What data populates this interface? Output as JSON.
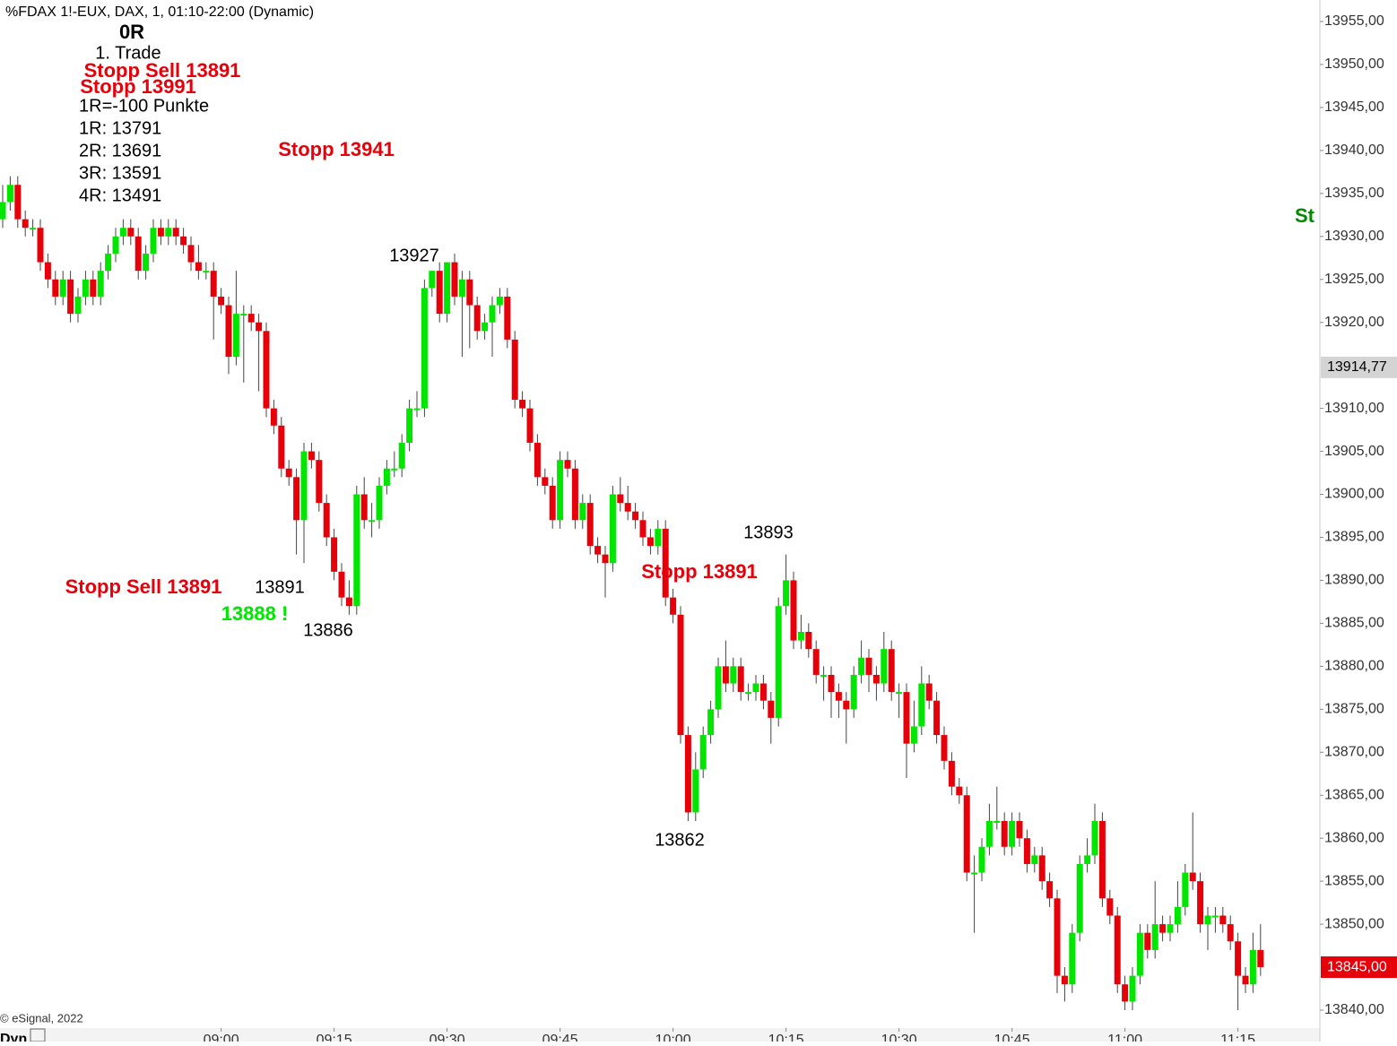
{
  "chart_data": {
    "type": "candlestick",
    "title": "%FDAX 1!-EUX, DAX, 1, 01:10-22:00 (Dynamic)",
    "up_color": "#00e600",
    "down_color": "#e6000a",
    "wick_color": "#444444",
    "ylim": [
      13840,
      13955
    ],
    "yticks": [
      {
        "value": 13955,
        "label": "13955,00"
      },
      {
        "value": 13950,
        "label": "13950,00"
      },
      {
        "value": 13945,
        "label": "13945,00"
      },
      {
        "value": 13940,
        "label": "13940,00"
      },
      {
        "value": 13935,
        "label": "13935,00"
      },
      {
        "value": 13930,
        "label": "13930,00"
      },
      {
        "value": 13925,
        "label": "13925,00"
      },
      {
        "value": 13920,
        "label": "13920,00"
      },
      {
        "value": 13910,
        "label": "13910,00"
      },
      {
        "value": 13905,
        "label": "13905,00"
      },
      {
        "value": 13900,
        "label": "13900,00"
      },
      {
        "value": 13895,
        "label": "13895,00"
      },
      {
        "value": 13890,
        "label": "13890,00"
      },
      {
        "value": 13885,
        "label": "13885,00"
      },
      {
        "value": 13880,
        "label": "13880,00"
      },
      {
        "value": 13875,
        "label": "13875,00"
      },
      {
        "value": 13870,
        "label": "13870,00"
      },
      {
        "value": 13865,
        "label": "13865,00"
      },
      {
        "value": 13860,
        "label": "13860,00"
      },
      {
        "value": 13855,
        "label": "13855,00"
      },
      {
        "value": 13850,
        "label": "13850,00"
      },
      {
        "value": 13840,
        "label": "13840,00"
      }
    ],
    "crosshair": {
      "value": 13914.77,
      "label": "13914,77",
      "color": "#d4d4d4"
    },
    "last_price": {
      "value": 13845,
      "label": "13845,00",
      "color": "#e6000a"
    },
    "categories": [
      null,
      null,
      null,
      null,
      null,
      null,
      null,
      null,
      null,
      null,
      null,
      null,
      null,
      null,
      null,
      null,
      null,
      null,
      null,
      null,
      null,
      null,
      null,
      null,
      null,
      null,
      null,
      null,
      null,
      "09:00",
      null,
      null,
      null,
      null,
      null,
      null,
      null,
      null,
      null,
      null,
      null,
      null,
      null,
      null,
      "09:15",
      null,
      null,
      null,
      null,
      null,
      null,
      null,
      null,
      null,
      null,
      null,
      null,
      null,
      null,
      "09:30",
      null,
      null,
      null,
      null,
      null,
      null,
      null,
      null,
      null,
      null,
      null,
      null,
      null,
      null,
      "09:45",
      null,
      null,
      null,
      null,
      null,
      null,
      null,
      null,
      null,
      null,
      null,
      null,
      null,
      null,
      "10:00",
      null,
      null,
      null,
      null,
      null,
      null,
      null,
      null,
      null,
      null,
      null,
      null,
      null,
      null,
      "10:15",
      null,
      null,
      null,
      null,
      null,
      null,
      null,
      null,
      null,
      null,
      null,
      null,
      null,
      null,
      "10:30",
      null,
      null,
      null,
      null,
      null,
      null,
      null,
      null,
      null,
      null,
      null,
      null,
      null,
      null,
      "10:45",
      null,
      null,
      null,
      null,
      null,
      null,
      null,
      null,
      null,
      null,
      null,
      null,
      null,
      null,
      "11:00",
      null,
      null,
      null,
      null,
      null,
      null,
      null,
      null,
      null,
      null,
      null,
      null,
      null,
      null,
      "11:15",
      null,
      null,
      null
    ],
    "candles": [
      [
        13932,
        13936,
        13931,
        13934
      ],
      [
        13934,
        13937,
        13933,
        13936
      ],
      [
        13936,
        13937,
        13931,
        13932
      ],
      [
        13932,
        13933,
        13930,
        13931
      ],
      [
        13931,
        13932,
        13930,
        13931
      ],
      [
        13931,
        13932,
        13926,
        13927
      ],
      [
        13927,
        13928,
        13924,
        13925
      ],
      [
        13925,
        13926,
        13922,
        13923
      ],
      [
        13923,
        13926,
        13922,
        13925
      ],
      [
        13925,
        13926,
        13920,
        13921
      ],
      [
        13921,
        13924,
        13920,
        13923
      ],
      [
        13923,
        13926,
        13922,
        13925
      ],
      [
        13925,
        13926,
        13922,
        13923
      ],
      [
        13923,
        13927,
        13922,
        13926
      ],
      [
        13926,
        13929,
        13925,
        13928
      ],
      [
        13928,
        13931,
        13927,
        13930
      ],
      [
        13930,
        13932,
        13929,
        13931
      ],
      [
        13931,
        13932,
        13929,
        13930
      ],
      [
        13930,
        13931,
        13925,
        13926
      ],
      [
        13926,
        13929,
        13925,
        13928
      ],
      [
        13928,
        13932,
        13927,
        13931
      ],
      [
        13931,
        13932,
        13929,
        13930
      ],
      [
        13930,
        13932,
        13929,
        13931
      ],
      [
        13931,
        13932,
        13929,
        13930
      ],
      [
        13930,
        13931,
        13928,
        13929
      ],
      [
        13929,
        13930,
        13926,
        13927
      ],
      [
        13927,
        13929,
        13925,
        13926
      ],
      [
        13926,
        13927,
        13925,
        13926
      ],
      [
        13926,
        13927,
        13918,
        13923
      ],
      [
        13923,
        13924,
        13921,
        13922
      ],
      [
        13922,
        13923,
        13914,
        13916
      ],
      [
        13916,
        13926,
        13915,
        13921
      ],
      [
        13921,
        13922,
        13913,
        13921
      ],
      [
        13921,
        13922,
        13919,
        13920
      ],
      [
        13920,
        13921,
        13912,
        13919
      ],
      [
        13919,
        13920,
        13909,
        13910
      ],
      [
        13910,
        13911,
        13907,
        13908
      ],
      [
        13908,
        13909,
        13902,
        13903
      ],
      [
        13903,
        13904,
        13901,
        13902
      ],
      [
        13902,
        13903,
        13893,
        13897
      ],
      [
        13897,
        13906,
        13892,
        13905
      ],
      [
        13905,
        13906,
        13903,
        13904
      ],
      [
        13904,
        13905,
        13898,
        13899
      ],
      [
        13899,
        13900,
        13894,
        13895
      ],
      [
        13895,
        13896,
        13890,
        13891
      ],
      [
        13891,
        13892,
        13887,
        13888
      ],
      [
        13888,
        13890,
        13886,
        13887
      ],
      [
        13887,
        13901,
        13886,
        13900
      ],
      [
        13900,
        13902,
        13896,
        13897
      ],
      [
        13897,
        13899,
        13895,
        13897
      ],
      [
        13897,
        13902,
        13896,
        13901
      ],
      [
        13901,
        13904,
        13900,
        13903
      ],
      [
        13903,
        13905,
        13902,
        13903
      ],
      [
        13903,
        13907,
        13902,
        13906
      ],
      [
        13906,
        13911,
        13905,
        13910
      ],
      [
        13910,
        13912,
        13909,
        13910
      ],
      [
        13910,
        13925,
        13909,
        13924
      ],
      [
        13924,
        13926,
        13923,
        13926
      ],
      [
        13926,
        13927,
        13920,
        13921
      ],
      [
        13921,
        13927,
        13920,
        13927
      ],
      [
        13927,
        13928,
        13922,
        13923
      ],
      [
        13923,
        13926,
        13916,
        13925
      ],
      [
        13925,
        13926,
        13917,
        13922
      ],
      [
        13922,
        13923,
        13918,
        13919
      ],
      [
        13919,
        13921,
        13918,
        13920
      ],
      [
        13920,
        13923,
        13916,
        13922
      ],
      [
        13922,
        13924,
        13921,
        13923
      ],
      [
        13923,
        13924,
        13917,
        13918
      ],
      [
        13918,
        13919,
        13910,
        13911
      ],
      [
        13911,
        13912,
        13909,
        13910
      ],
      [
        13910,
        13911,
        13905,
        13906
      ],
      [
        13906,
        13907,
        13901,
        13902
      ],
      [
        13902,
        13903,
        13900,
        13901
      ],
      [
        13901,
        13902,
        13896,
        13897
      ],
      [
        13897,
        13905,
        13896,
        13904
      ],
      [
        13904,
        13905,
        13902,
        13903
      ],
      [
        13903,
        13904,
        13896,
        13897
      ],
      [
        13897,
        13900,
        13896,
        13899
      ],
      [
        13899,
        13900,
        13893,
        13894
      ],
      [
        13894,
        13895,
        13892,
        13893
      ],
      [
        13893,
        13894,
        13888,
        13892
      ],
      [
        13892,
        13901,
        13891,
        13900
      ],
      [
        13900,
        13902,
        13898,
        13899
      ],
      [
        13899,
        13901,
        13897,
        13898
      ],
      [
        13898,
        13899,
        13896,
        13897
      ],
      [
        13897,
        13898,
        13894,
        13895
      ],
      [
        13895,
        13896,
        13893,
        13894
      ],
      [
        13894,
        13897,
        13893,
        13896
      ],
      [
        13896,
        13897,
        13887,
        13888
      ],
      [
        13888,
        13889,
        13885,
        13886
      ],
      [
        13886,
        13887,
        13871,
        13872
      ],
      [
        13872,
        13873,
        13862,
        13863
      ],
      [
        13863,
        13870,
        13862,
        13868
      ],
      [
        13868,
        13873,
        13867,
        13872
      ],
      [
        13872,
        13876,
        13871,
        13875
      ],
      [
        13875,
        13881,
        13874,
        13880
      ],
      [
        13880,
        13883,
        13877,
        13878
      ],
      [
        13878,
        13881,
        13877,
        13880
      ],
      [
        13880,
        13881,
        13876,
        13877
      ],
      [
        13877,
        13878,
        13876,
        13877
      ],
      [
        13877,
        13879,
        13876,
        13878
      ],
      [
        13878,
        13879,
        13875,
        13876
      ],
      [
        13876,
        13877,
        13871,
        13874
      ],
      [
        13874,
        13888,
        13873,
        13887
      ],
      [
        13887,
        13893,
        13886,
        13890
      ],
      [
        13890,
        13891,
        13882,
        13883
      ],
      [
        13883,
        13886,
        13882,
        13884
      ],
      [
        13884,
        13885,
        13881,
        13882
      ],
      [
        13882,
        13883,
        13878,
        13879
      ],
      [
        13879,
        13880,
        13876,
        13879
      ],
      [
        13879,
        13880,
        13874,
        13877
      ],
      [
        13877,
        13878,
        13874,
        13876
      ],
      [
        13876,
        13877,
        13871,
        13875
      ],
      [
        13875,
        13880,
        13874,
        13879
      ],
      [
        13879,
        13883,
        13878,
        13881
      ],
      [
        13881,
        13882,
        13877,
        13879
      ],
      [
        13879,
        13880,
        13876,
        13878
      ],
      [
        13878,
        13884,
        13877,
        13882
      ],
      [
        13882,
        13883,
        13876,
        13877
      ],
      [
        13877,
        13878,
        13874,
        13877
      ],
      [
        13877,
        13878,
        13867,
        13871
      ],
      [
        13871,
        13876,
        13870,
        13873
      ],
      [
        13873,
        13880,
        13872,
        13878
      ],
      [
        13878,
        13879,
        13875,
        13876
      ],
      [
        13876,
        13877,
        13871,
        13872
      ],
      [
        13872,
        13873,
        13868,
        13869
      ],
      [
        13869,
        13870,
        13865,
        13866
      ],
      [
        13866,
        13867,
        13864,
        13865
      ],
      [
        13865,
        13866,
        13855,
        13856
      ],
      [
        13856,
        13858,
        13849,
        13856
      ],
      [
        13856,
        13860,
        13855,
        13859
      ],
      [
        13859,
        13864,
        13858,
        13862
      ],
      [
        13862,
        13866,
        13861,
        13862
      ],
      [
        13862,
        13863,
        13858,
        13859
      ],
      [
        13859,
        13863,
        13858,
        13862
      ],
      [
        13862,
        13863,
        13859,
        13860
      ],
      [
        13860,
        13861,
        13856,
        13857
      ],
      [
        13857,
        13859,
        13856,
        13858
      ],
      [
        13858,
        13859,
        13854,
        13855
      ],
      [
        13855,
        13856,
        13852,
        13853
      ],
      [
        13853,
        13854,
        13842,
        13844
      ],
      [
        13844,
        13845,
        13841,
        13843
      ],
      [
        13843,
        13850,
        13842,
        13849
      ],
      [
        13849,
        13858,
        13848,
        13857
      ],
      [
        13857,
        13860,
        13856,
        13858
      ],
      [
        13858,
        13864,
        13857,
        13862
      ],
      [
        13862,
        13863,
        13852,
        13853
      ],
      [
        13853,
        13854,
        13850,
        13851
      ],
      [
        13851,
        13852,
        13842,
        13843
      ],
      [
        13843,
        13844,
        13840,
        13841
      ],
      [
        13841,
        13845,
        13840,
        13844
      ],
      [
        13844,
        13850,
        13843,
        13849
      ],
      [
        13849,
        13850,
        13846,
        13847
      ],
      [
        13847,
        13855,
        13846,
        13850
      ],
      [
        13850,
        13851,
        13848,
        13849
      ],
      [
        13849,
        13851,
        13848,
        13850
      ],
      [
        13850,
        13855,
        13849,
        13852
      ],
      [
        13852,
        13857,
        13851,
        13856
      ],
      [
        13856,
        13863,
        13854,
        13855
      ],
      [
        13855,
        13856,
        13849,
        13850
      ],
      [
        13850,
        13852,
        13847,
        13851
      ],
      [
        13851,
        13852,
        13849,
        13851
      ],
      [
        13851,
        13852,
        13849,
        13850
      ],
      [
        13850,
        13851,
        13847,
        13848
      ],
      [
        13848,
        13849,
        13840,
        13844
      ],
      [
        13844,
        13845,
        13842,
        13843
      ],
      [
        13843,
        13849,
        13842,
        13847
      ],
      [
        13847,
        13850,
        13844,
        13845
      ]
    ],
    "annotations": [
      {
        "text": "0R",
        "color": "#000000",
        "bold": true
      },
      {
        "text": "1. Trade",
        "color": "#000000",
        "bold": false
      },
      {
        "text": "Stopp Sell 13891",
        "color": "#e6000a",
        "bold": true
      },
      {
        "text": "Stopp 13991",
        "color": "#e6000a",
        "bold": true
      },
      {
        "text": "1R=-100 Punkte",
        "color": "#000000",
        "bold": false
      },
      {
        "text": "1R: 13791",
        "color": "#000000",
        "bold": false
      },
      {
        "text": "2R: 13691",
        "color": "#000000",
        "bold": false
      },
      {
        "text": "3R: 13591",
        "color": "#000000",
        "bold": false
      },
      {
        "text": "4R: 13491",
        "color": "#000000",
        "bold": false
      },
      {
        "text": "Stopp 13941",
        "color": "#e6000a",
        "bold": true
      },
      {
        "text": "13927",
        "color": "#000000",
        "bold": false
      },
      {
        "text": "Stopp Sell 13891",
        "color": "#e6000a",
        "bold": true
      },
      {
        "text": "13891",
        "color": "#000000",
        "bold": false
      },
      {
        "text": "13888 !",
        "color": "#00e600",
        "bold": true
      },
      {
        "text": "13886",
        "color": "#000000",
        "bold": false
      },
      {
        "text": "13893",
        "color": "#000000",
        "bold": false
      },
      {
        "text": "Stopp 13891",
        "color": "#e6000a",
        "bold": true
      },
      {
        "text": "13862",
        "color": "#000000",
        "bold": false
      },
      {
        "text": "St",
        "color": "#008a00",
        "bold": true
      }
    ],
    "copyright": "© eSignal, 2022",
    "mode_label": "Dyn"
  }
}
